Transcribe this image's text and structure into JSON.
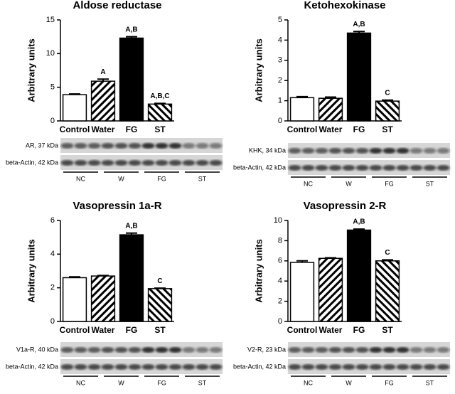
{
  "chart_data": [
    {
      "type": "bar",
      "title": "Aldose reductase",
      "y_label": "Arbitrary units",
      "categories": [
        "Control",
        "Water",
        "FG",
        "ST"
      ],
      "values": [
        3.9,
        5.9,
        12.3,
        2.5
      ],
      "errors": [
        0.1,
        0.3,
        0.2,
        0.1
      ],
      "annotations": [
        null,
        "A",
        "A,B",
        "A,B,C"
      ],
      "ylim": [
        0,
        15
      ],
      "yticks": [
        0,
        5,
        10,
        15
      ],
      "blot": {
        "target": "AR, 37 kDa",
        "control": "beta-Actin, 42 kDa",
        "lanes": [
          "NC",
          "W",
          "FG",
          "ST"
        ]
      }
    },
    {
      "type": "bar",
      "title": "Ketohexokinase",
      "y_label": "Arbitrary units",
      "categories": [
        "Control",
        "Water",
        "FG",
        "ST"
      ],
      "values": [
        1.15,
        1.12,
        4.35,
        0.98
      ],
      "errors": [
        0.05,
        0.06,
        0.08,
        0.05
      ],
      "annotations": [
        null,
        null,
        "A,B",
        "C"
      ],
      "ylim": [
        0,
        5
      ],
      "yticks": [
        0,
        1,
        2,
        3,
        4,
        5
      ],
      "blot": {
        "target": "KHK, 34 kDa",
        "control": "beta-Actin, 42 kDa",
        "lanes": [
          "NC",
          "W",
          "FG",
          "ST"
        ]
      }
    },
    {
      "type": "bar",
      "title": "Vasopressin 1a-R",
      "y_label": "Arbitrary units",
      "categories": [
        "Control",
        "Water",
        "FG",
        "ST"
      ],
      "values": [
        2.6,
        2.7,
        5.15,
        1.95
      ],
      "errors": [
        0.05,
        0.03,
        0.1,
        0.03
      ],
      "annotations": [
        null,
        null,
        "A,B",
        "C"
      ],
      "ylim": [
        0,
        6
      ],
      "yticks": [
        0,
        2,
        4,
        6
      ],
      "blot": {
        "target": "V1a-R, 40 kDa",
        "control": "beta-Actin, 42 kDa",
        "lanes": [
          "NC",
          "W",
          "FG",
          "ST"
        ]
      }
    },
    {
      "type": "bar",
      "title": "Vasopressin 2-R",
      "y_label": "Arbitrary units",
      "categories": [
        "Control",
        "Water",
        "FG",
        "ST"
      ],
      "values": [
        5.85,
        6.25,
        9.05,
        6.0
      ],
      "errors": [
        0.15,
        0.05,
        0.1,
        0.1
      ],
      "annotations": [
        null,
        null,
        "A,B",
        "C"
      ],
      "ylim": [
        0,
        10
      ],
      "yticks": [
        0,
        2,
        4,
        6,
        8,
        10
      ],
      "blot": {
        "target": "V2-R, 23 kDa",
        "control": "beta-Actin, 42 kDa",
        "lanes": [
          "NC",
          "W",
          "FG",
          "ST"
        ]
      }
    }
  ]
}
